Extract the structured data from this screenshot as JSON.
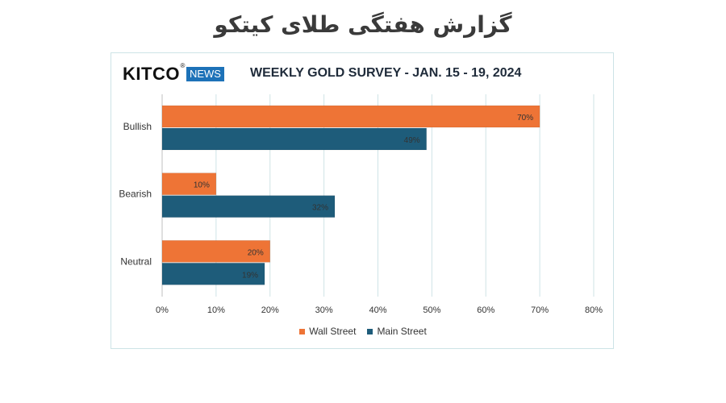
{
  "header": {
    "title": "گزارش هفتگی طلای کیتکو"
  },
  "logo": {
    "brand": "KITCO",
    "registered": "®",
    "tag": "NEWS"
  },
  "colors": {
    "wall_street": "#ee7436",
    "main_street": "#1e5c7a",
    "logo_tag_bg": "#1d72b8"
  },
  "chart_data": {
    "type": "bar",
    "orientation": "horizontal",
    "title": "WEEKLY GOLD SURVEY - JAN. 15 - 19, 2024",
    "categories": [
      "Bullish",
      "Bearish",
      "Neutral"
    ],
    "series": [
      {
        "name": "Wall Street",
        "values": [
          70,
          10,
          20
        ],
        "labels": [
          "70%",
          "10%",
          "20%"
        ]
      },
      {
        "name": "Main Street",
        "values": [
          49,
          32,
          19
        ],
        "labels": [
          "49%",
          "32%",
          "19%"
        ]
      }
    ],
    "xlim": [
      0,
      80
    ],
    "xticks": [
      "0%",
      "10%",
      "20%",
      "30%",
      "40%",
      "50%",
      "60%",
      "70%",
      "80%"
    ],
    "grid": true,
    "legend_position": "bottom"
  }
}
